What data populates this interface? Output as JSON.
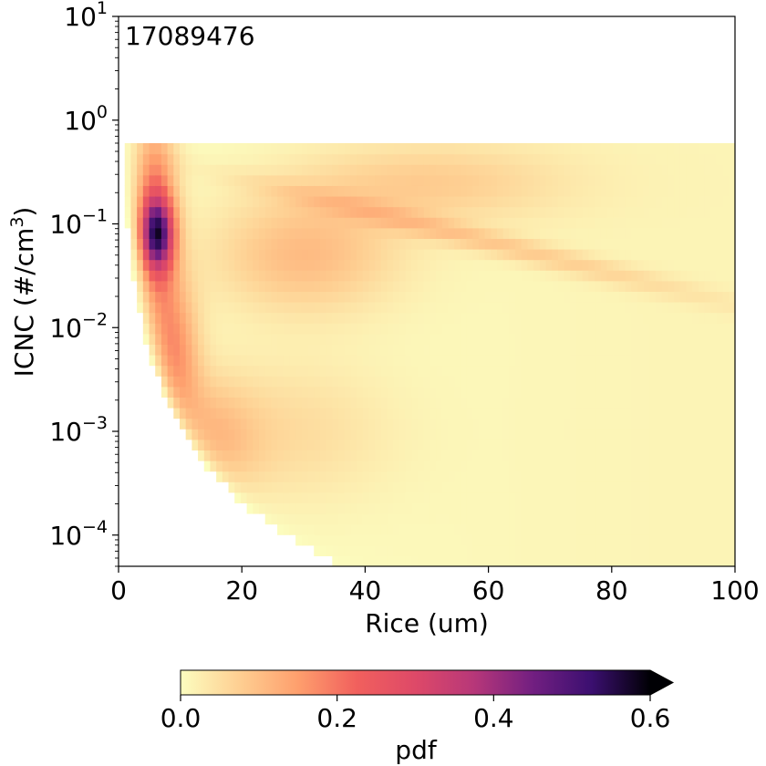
{
  "chart_data": {
    "type": "heatmap",
    "annotation": "17089476",
    "xlabel": "Rice (um)",
    "ylabel_main": "ICNC (#/cm",
    "ylabel_sup": "3",
    "ylabel_end": ")",
    "x_range": [
      0,
      100
    ],
    "x_ticks": [
      {
        "value": 0,
        "label": "0"
      },
      {
        "value": 20,
        "label": "20"
      },
      {
        "value": 40,
        "label": "40"
      },
      {
        "value": 60,
        "label": "60"
      },
      {
        "value": 80,
        "label": "80"
      },
      {
        "value": 100,
        "label": "100"
      }
    ],
    "y_scale": "log",
    "y_range": [
      5e-05,
      10
    ],
    "y_ticks": [
      {
        "value": 0.0001,
        "base": "10",
        "exp": "−4"
      },
      {
        "value": 0.001,
        "base": "10",
        "exp": "−3"
      },
      {
        "value": 0.01,
        "base": "10",
        "exp": "−2"
      },
      {
        "value": 0.1,
        "base": "10",
        "exp": "−1"
      },
      {
        "value": 1,
        "base": "10",
        "exp": "0"
      },
      {
        "value": 10,
        "base": "10",
        "exp": "1"
      }
    ],
    "data_extent": {
      "ice_radius_um": [
        1,
        100
      ],
      "icnc_per_cm3": [
        5e-05,
        0.6
      ]
    },
    "density_peak": {
      "ice_radius_um": 6,
      "icnc_per_cm3": 0.08,
      "pdf": 0.42
    },
    "colorbar": {
      "label": "pdf",
      "colormap": "magma_r",
      "range": [
        0,
        0.6
      ],
      "extend": "max",
      "ticks": [
        {
          "value": 0.0,
          "label": "0.0"
        },
        {
          "value": 0.2,
          "label": "0.2"
        },
        {
          "value": 0.4,
          "label": "0.4"
        },
        {
          "value": 0.6,
          "label": "0.6"
        }
      ]
    }
  }
}
